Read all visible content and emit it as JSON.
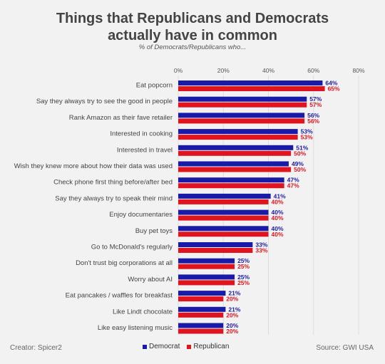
{
  "chart_data": {
    "type": "bar",
    "orientation": "horizontal",
    "title": "Things that Republicans and Democrats actually have in common",
    "subtitle": "% of Democrats/Republicans who...",
    "xlim": [
      0,
      80
    ],
    "x_ticks": [
      "0%",
      "20%",
      "40%",
      "60%",
      "80%"
    ],
    "categories": [
      "Eat popcorn",
      "Say they always try to see the good in people",
      "Rank Amazon as their fave retailer",
      "Interested in cooking",
      "Interested in travel",
      "Wish they knew more about how their data was used",
      "Check phone first thing before/after bed",
      "Say they always try to speak their mind",
      "Enjoy documentaries",
      "Buy pet toys",
      "Go to McDonald's regularly",
      "Don't trust big corporations at all",
      "Worry about AI",
      "Eat pancakes / waffles for breakfast",
      "Like Lindt chocolate",
      "Like easy listening music"
    ],
    "series": [
      {
        "name": "Democrat",
        "color": "#1a1aa8",
        "values": [
          64,
          57,
          56,
          53,
          51,
          49,
          47,
          41,
          40,
          40,
          33,
          25,
          25,
          21,
          21,
          20
        ],
        "labels": [
          "64%",
          "57%",
          "56%",
          "53%",
          "51%",
          "49%",
          "47%",
          "41%",
          "40%",
          "40%",
          "33%",
          "25%",
          "25%",
          "21%",
          "21%",
          "20%"
        ]
      },
      {
        "name": "Republican",
        "color": "#e0141e",
        "values": [
          65,
          57,
          56,
          53,
          50,
          50,
          47,
          40,
          40,
          40,
          33,
          25,
          25,
          20,
          20,
          20
        ],
        "labels": [
          "65%",
          "57%",
          "56%",
          "53%",
          "50%",
          "50%",
          "47%",
          "40%",
          "40%",
          "40%",
          "33%",
          "25%",
          "25%",
          "20%",
          "20%",
          "20%"
        ]
      }
    ],
    "legend_position": "bottom",
    "grid": true
  },
  "footer": {
    "creator": "Creator: Spicer2",
    "source": "Source: GWI USA"
  }
}
